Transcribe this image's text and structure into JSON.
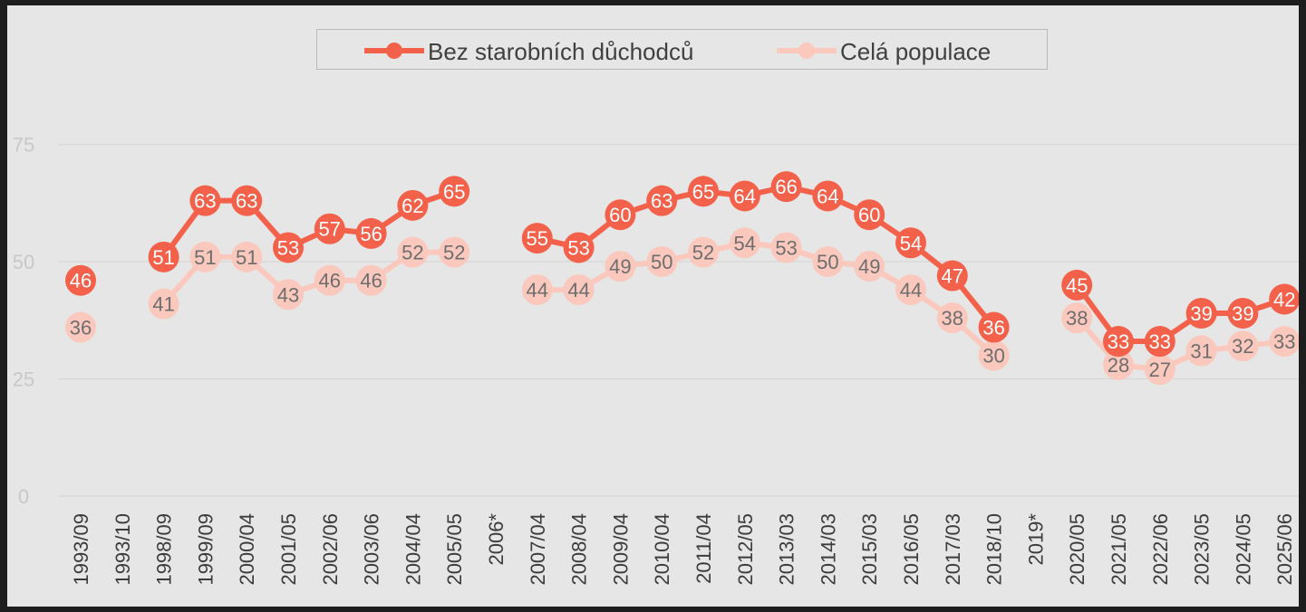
{
  "chart_data": {
    "type": "line",
    "categories": [
      "1993/09",
      "1993/10",
      "1998/09",
      "1999/09",
      "2000/04",
      "2001/05",
      "2002/06",
      "2003/06",
      "2004/04",
      "2005/05",
      "2006*",
      "2007/04",
      "2008/04",
      "2009/04",
      "2010/04",
      "2011/04",
      "2012/05",
      "2013/03",
      "2014/03",
      "2015/03",
      "2016/05",
      "2017/03",
      "2018/10",
      "2019*",
      "2020/05",
      "2021/05",
      "2022/06",
      "2023/05",
      "2024/05",
      "2025/06"
    ],
    "series": [
      {
        "name": "Bez starobních důchodců",
        "color": "#f4614b",
        "values": [
          46,
          null,
          51,
          63,
          63,
          53,
          57,
          56,
          62,
          65,
          null,
          55,
          53,
          60,
          63,
          65,
          64,
          66,
          64,
          60,
          54,
          47,
          36,
          null,
          45,
          33,
          33,
          39,
          39,
          42
        ]
      },
      {
        "name": "Celá populace",
        "color": "#fbc8bd",
        "values": [
          36,
          null,
          41,
          51,
          51,
          43,
          46,
          46,
          52,
          52,
          null,
          44,
          44,
          49,
          50,
          52,
          54,
          53,
          50,
          49,
          44,
          38,
          30,
          null,
          38,
          28,
          27,
          31,
          32,
          33
        ]
      }
    ],
    "y_ticks": [
      "0",
      "25",
      "50",
      "75"
    ],
    "ylim": [
      0,
      87
    ],
    "grid": true,
    "legend_position": "top"
  },
  "colors": {
    "background": "#e6e6e6",
    "gridline": "#d9d9d9",
    "tick_text": "#c8c8c8",
    "category_text": "#3c3c3c",
    "label_on_dark": "#ffffff",
    "label_on_light": "#6e6e6e"
  }
}
